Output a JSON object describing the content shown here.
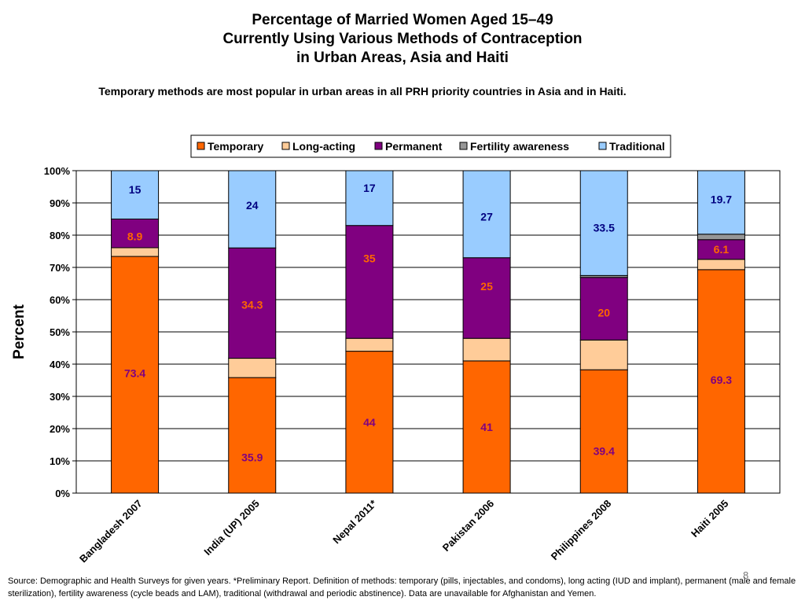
{
  "slide": {
    "title_lines": [
      "Percentage of Married Women Aged 15–49",
      "Currently Using Various Methods of Contraception",
      "in Urban Areas, Asia and Haiti"
    ],
    "subtitle": "Temporary methods are most popular in urban areas in all PRH priority countries in Asia and in Haiti.",
    "source": "Source: Demographic and Health Surveys for given years. *Preliminary Report. Definition of methods: temporary (pills, injectables, and condoms), long acting (IUD and implant), permanent (male and female sterilization), fertility awareness (cycle beads and LAM), traditional (withdrawal and periodic abstinence). Data are unavailable for Afghanistan and Yemen.",
    "page_number": "8"
  },
  "chart_data": {
    "type": "bar",
    "stacked": true,
    "percent_stacked": true,
    "categories": [
      "Bangladesh 2007",
      "India (UP) 2005",
      "Nepal 2011*",
      "Pakistan 2006",
      "Philippines 2008",
      "Haiti 2005"
    ],
    "ylabel": "Percent",
    "xlabel": "",
    "ylim": [
      0,
      100
    ],
    "yticks": [
      "0%",
      "10%",
      "20%",
      "30%",
      "40%",
      "50%",
      "60%",
      "70%",
      "80%",
      "90%",
      "100%"
    ],
    "grid": true,
    "legend_position": "top",
    "series": [
      {
        "name": "Temporary",
        "color": "#FF6600",
        "values": [
          73.4,
          35.9,
          44,
          41,
          39.4,
          69.3
        ],
        "labels": [
          "73.4",
          "35.9",
          "44",
          "41",
          "39.4",
          "69.3"
        ]
      },
      {
        "name": "Long-acting",
        "color": "#FFCC99",
        "values": [
          2.7,
          6,
          4,
          7,
          9.5,
          3.2
        ],
        "labels": [
          "",
          "",
          "",
          "",
          "",
          ""
        ]
      },
      {
        "name": "Permanent",
        "color": "#800080",
        "values": [
          8.9,
          34.3,
          35,
          25,
          20,
          6.1
        ],
        "labels": [
          "8.9",
          "34.3",
          "35",
          "25",
          "20",
          "6.1"
        ]
      },
      {
        "name": "Fertility awareness",
        "color": "#969696",
        "values": [
          0,
          0,
          0,
          0,
          0.6,
          1.7
        ],
        "labels": [
          "",
          "",
          "",
          "",
          "",
          ""
        ]
      },
      {
        "name": "Traditional",
        "color": "#99CCFF",
        "values": [
          15,
          24,
          17,
          27,
          33.5,
          19.7
        ],
        "labels": [
          "15",
          "24",
          "17",
          "27",
          "33.5",
          "19.7"
        ]
      }
    ]
  }
}
